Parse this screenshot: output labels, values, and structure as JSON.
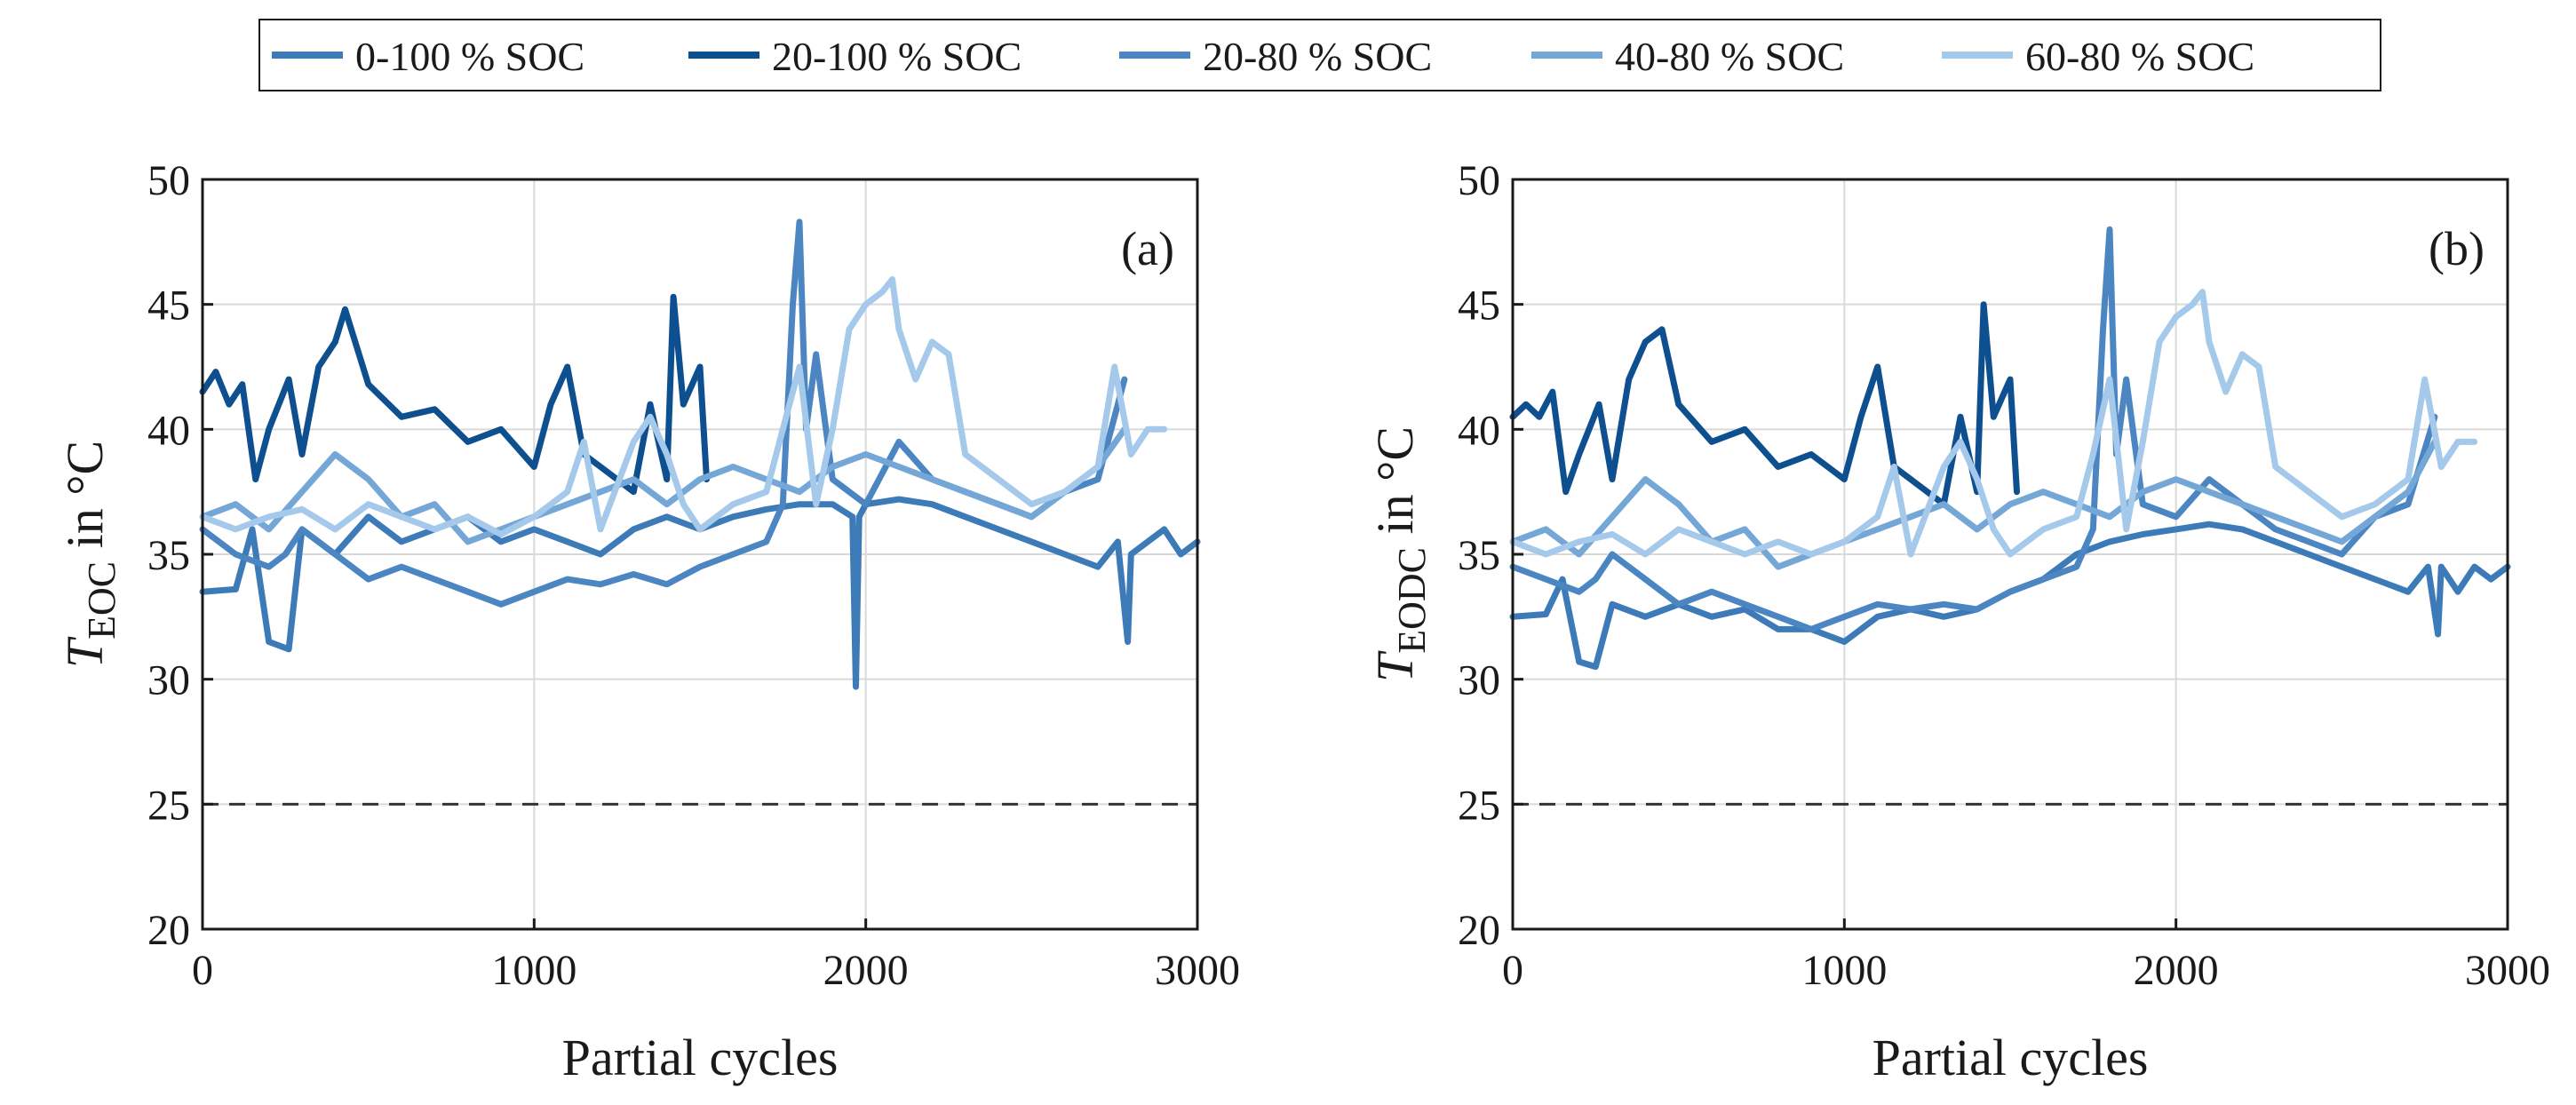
{
  "chart_data": {
    "type": "line",
    "colors": {
      "0-100 % SOC": "#3d7ab8",
      "20-100 % SOC": "#0e4f8f",
      "20-80 % SOC": "#4c86c2",
      "40-80 % SOC": "#74a7d6",
      "60-80 % SOC": "#a5c9ea",
      "reference": "#333333",
      "grid": "#d9d9d9"
    },
    "legend": [
      "0-100 % SOC",
      "20-100 % SOC",
      "20-80 % SOC",
      "40-80 % SOC",
      "60-80 % SOC"
    ],
    "reference_line": 25,
    "panels": [
      {
        "label": "(a)",
        "xlabel": "Partial cycles",
        "ylabel_main": "T",
        "ylabel_sub": "EOC",
        "ylabel_rest": " in °C",
        "xlim": [
          0,
          3000
        ],
        "ylim": [
          20,
          50
        ],
        "xticks": [
          "0",
          "1000",
          "2000",
          "3000"
        ],
        "yticks": [
          "20",
          "25",
          "30",
          "35",
          "40",
          "45",
          "50"
        ],
        "series": [
          {
            "name": "0-100 % SOC",
            "x": [
              0,
              100,
              150,
              200,
              260,
              300,
              400,
              500,
              600,
              700,
              800,
              900,
              1000,
              1100,
              1200,
              1300,
              1400,
              1500,
              1600,
              1700,
              1800,
              1900,
              1960,
              1970,
              1980,
              2000,
              2100,
              2200,
              2300,
              2400,
              2500,
              2600,
              2700,
              2760,
              2790,
              2800,
              2850,
              2900,
              2950,
              3000
            ],
            "y": [
              33.5,
              33.6,
              36,
              31.5,
              31.2,
              36,
              35,
              36.5,
              35.5,
              36,
              36.5,
              35.5,
              36,
              35.5,
              35,
              36,
              36.5,
              36,
              36.5,
              36.8,
              37,
              37,
              36.5,
              29.7,
              36.5,
              37,
              37.2,
              37,
              36.5,
              36,
              35.5,
              35,
              34.5,
              35.5,
              31.5,
              35,
              35.5,
              36,
              35,
              35.5
            ]
          },
          {
            "name": "20-100 % SOC",
            "x": [
              0,
              40,
              80,
              120,
              160,
              200,
              260,
              300,
              350,
              400,
              430,
              500,
              600,
              700,
              800,
              900,
              1000,
              1050,
              1100,
              1150,
              1200,
              1300,
              1350,
              1400,
              1420,
              1450,
              1500,
              1520
            ],
            "y": [
              41.5,
              42.3,
              41,
              41.8,
              38,
              40,
              42,
              39,
              42.5,
              43.5,
              44.8,
              41.8,
              40.5,
              40.8,
              39.5,
              40,
              38.5,
              41,
              42.5,
              39,
              38.5,
              37.5,
              41,
              38,
              45.3,
              41,
              42.5,
              38
            ]
          },
          {
            "name": "20-80 % SOC",
            "x": [
              0,
              100,
              200,
              250,
              300,
              400,
              500,
              600,
              700,
              800,
              900,
              1000,
              1100,
              1200,
              1300,
              1400,
              1500,
              1600,
              1700,
              1750,
              1780,
              1800,
              1820,
              1850,
              1900,
              2000,
              2100,
              2200,
              2300,
              2400,
              2500,
              2600,
              2700,
              2780
            ],
            "y": [
              36,
              35,
              34.5,
              35,
              36,
              35,
              34,
              34.5,
              34,
              33.5,
              33,
              33.5,
              34,
              33.8,
              34.2,
              33.8,
              34.5,
              35,
              35.5,
              37,
              45,
              48.3,
              40,
              43,
              38,
              37,
              39.5,
              38,
              37.5,
              37,
              36.5,
              37.5,
              38,
              42
            ]
          },
          {
            "name": "40-80 % SOC",
            "x": [
              0,
              100,
              200,
              300,
              400,
              500,
              600,
              700,
              800,
              900,
              1000,
              1100,
              1200,
              1300,
              1400,
              1500,
              1600,
              1700,
              1800,
              1900,
              2000,
              2100,
              2200,
              2300,
              2400,
              2500,
              2600,
              2700,
              2780
            ],
            "y": [
              36.5,
              37,
              36,
              37.5,
              39,
              38,
              36.5,
              37,
              35.5,
              36,
              36.5,
              37,
              37.5,
              38,
              37,
              38,
              38.5,
              38,
              37.5,
              38.5,
              39,
              38.5,
              38,
              37.5,
              37,
              36.5,
              37.5,
              38.5,
              40
            ]
          },
          {
            "name": "60-80 % SOC",
            "x": [
              0,
              100,
              200,
              300,
              400,
              500,
              600,
              700,
              800,
              900,
              1000,
              1100,
              1150,
              1200,
              1300,
              1350,
              1400,
              1450,
              1500,
              1600,
              1700,
              1750,
              1800,
              1850,
              1900,
              1950,
              2000,
              2050,
              2080,
              2100,
              2150,
              2200,
              2250,
              2300,
              2400,
              2500,
              2600,
              2700,
              2750,
              2800,
              2850,
              2900
            ],
            "y": [
              36.5,
              36,
              36.5,
              36.8,
              36,
              37,
              36.5,
              36,
              36.5,
              35.8,
              36.5,
              37.5,
              39.5,
              36,
              39.5,
              40.5,
              39,
              37,
              36,
              37,
              37.5,
              40,
              42.5,
              37,
              40,
              44,
              45,
              45.5,
              46,
              44,
              42,
              43.5,
              43,
              39,
              38,
              37,
              37.5,
              38.5,
              42.5,
              39,
              40,
              40
            ]
          }
        ]
      },
      {
        "label": "(b)",
        "xlabel": "Partial cycles",
        "ylabel_main": "T",
        "ylabel_sub": "EODC",
        "ylabel_rest": " in °C",
        "xlim": [
          0,
          3000
        ],
        "ylim": [
          20,
          50
        ],
        "xticks": [
          "0",
          "1000",
          "2000",
          "3000"
        ],
        "yticks": [
          "20",
          "25",
          "30",
          "35",
          "40",
          "45",
          "50"
        ],
        "series": [
          {
            "name": "0-100 % SOC",
            "x": [
              0,
              100,
              150,
              200,
              250,
              300,
              400,
              500,
              600,
              700,
              800,
              900,
              1000,
              1100,
              1200,
              1300,
              1400,
              1500,
              1600,
              1700,
              1800,
              1900,
              2000,
              2100,
              2200,
              2300,
              2400,
              2500,
              2600,
              2700,
              2760,
              2790,
              2800,
              2850,
              2900,
              2950,
              3000
            ],
            "y": [
              32.5,
              32.6,
              34,
              30.7,
              30.5,
              33,
              32.5,
              33,
              32.5,
              32.8,
              32,
              32,
              31.5,
              32.5,
              32.8,
              32.5,
              32.8,
              33.5,
              34,
              35,
              35.5,
              35.8,
              36,
              36.2,
              36,
              35.5,
              35,
              34.5,
              34,
              33.5,
              34.5,
              31.8,
              34.5,
              33.5,
              34.5,
              34,
              34.5
            ]
          },
          {
            "name": "20-100 % SOC",
            "x": [
              0,
              40,
              80,
              120,
              160,
              200,
              260,
              300,
              350,
              400,
              450,
              500,
              600,
              700,
              800,
              900,
              1000,
              1050,
              1100,
              1150,
              1200,
              1300,
              1350,
              1400,
              1420,
              1450,
              1500,
              1520
            ],
            "y": [
              40.5,
              41,
              40.5,
              41.5,
              37.5,
              39,
              41,
              38,
              42,
              43.5,
              44,
              41,
              39.5,
              40,
              38.5,
              39,
              38,
              40.5,
              42.5,
              38.5,
              38,
              37,
              40.5,
              37.5,
              45,
              40.5,
              42,
              37.5
            ]
          },
          {
            "name": "20-80 % SOC",
            "x": [
              0,
              100,
              200,
              250,
              300,
              400,
              500,
              600,
              700,
              800,
              900,
              1000,
              1100,
              1200,
              1300,
              1400,
              1500,
              1600,
              1700,
              1750,
              1780,
              1800,
              1820,
              1850,
              1900,
              2000,
              2100,
              2200,
              2300,
              2400,
              2500,
              2600,
              2700,
              2780
            ],
            "y": [
              34.5,
              34,
              33.5,
              34,
              35,
              34,
              33,
              33.5,
              33,
              32.5,
              32,
              32.5,
              33,
              32.8,
              33,
              32.8,
              33.5,
              34,
              34.5,
              36,
              44,
              48,
              39,
              42,
              37,
              36.5,
              38,
              37,
              36,
              35.5,
              35,
              36.5,
              37,
              40.5
            ]
          },
          {
            "name": "40-80 % SOC",
            "x": [
              0,
              100,
              200,
              300,
              400,
              500,
              600,
              700,
              800,
              900,
              1000,
              1100,
              1200,
              1300,
              1400,
              1500,
              1600,
              1700,
              1800,
              1900,
              2000,
              2100,
              2200,
              2300,
              2400,
              2500,
              2600,
              2700,
              2780
            ],
            "y": [
              35.5,
              36,
              35,
              36.5,
              38,
              37,
              35.5,
              36,
              34.5,
              35,
              35.5,
              36,
              36.5,
              37,
              36,
              37,
              37.5,
              37,
              36.5,
              37.5,
              38,
              37.5,
              37,
              36.5,
              36,
              35.5,
              36.5,
              37.5,
              39.5
            ]
          },
          {
            "name": "60-80 % SOC",
            "x": [
              0,
              100,
              200,
              300,
              400,
              500,
              600,
              700,
              800,
              900,
              1000,
              1100,
              1150,
              1200,
              1300,
              1350,
              1400,
              1450,
              1500,
              1600,
              1700,
              1750,
              1800,
              1850,
              1900,
              1950,
              2000,
              2050,
              2080,
              2100,
              2150,
              2200,
              2250,
              2300,
              2400,
              2500,
              2600,
              2700,
              2750,
              2800,
              2850,
              2900
            ],
            "y": [
              35.5,
              35,
              35.5,
              35.8,
              35,
              36,
              35.5,
              35,
              35.5,
              35,
              35.5,
              36.5,
              38.5,
              35,
              38.5,
              39.5,
              38,
              36,
              35,
              36,
              36.5,
              39,
              42,
              36,
              39.5,
              43.5,
              44.5,
              45,
              45.5,
              43.5,
              41.5,
              43,
              42.5,
              38.5,
              37.5,
              36.5,
              37,
              38,
              42,
              38.5,
              39.5,
              39.5
            ]
          }
        ]
      }
    ]
  }
}
